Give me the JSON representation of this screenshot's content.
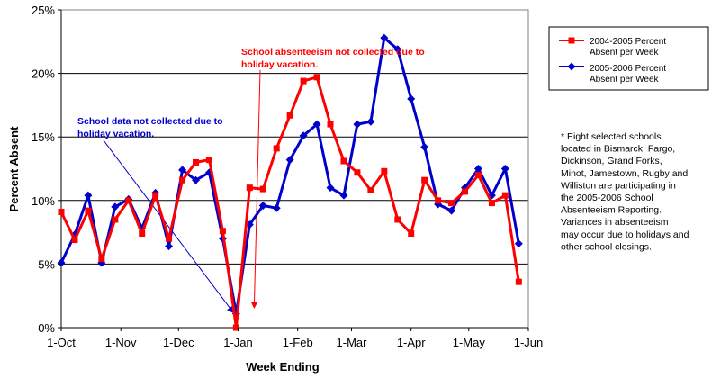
{
  "chart_data": {
    "type": "line",
    "xlabel": "Week Ending",
    "ylabel": "Percent Absent",
    "x_tick_labels": [
      "1-Oct",
      "1-Nov",
      "1-Dec",
      "1-Jan",
      "1-Feb",
      "1-Mar",
      "1-Apr",
      "1-May",
      "1-Jun"
    ],
    "y_tick_labels": [
      "0%",
      "5%",
      "10%",
      "15%",
      "20%",
      "25%"
    ],
    "ylim": [
      0,
      25
    ],
    "grid": "horizontal",
    "legend_position": "top-right",
    "series": [
      {
        "name": "2004-2005 Percent Absent per Week",
        "color": "#ff0000",
        "marker": "square",
        "points": [
          [
            "1-Oct",
            9.1
          ],
          [
            "8-Oct",
            6.9
          ],
          [
            "15-Oct",
            9.2
          ],
          [
            "22-Oct",
            5.4
          ],
          [
            "29-Oct",
            8.5
          ],
          [
            "5-Nov",
            10.0
          ],
          [
            "12-Nov",
            7.4
          ],
          [
            "19-Nov",
            10.4
          ],
          [
            "26-Nov",
            7.0
          ],
          [
            "3-Dec",
            11.6
          ],
          [
            "10-Dec",
            13.0
          ],
          [
            "17-Dec",
            13.2
          ],
          [
            "24-Dec",
            7.6
          ],
          [
            "31-Dec",
            0.0
          ],
          [
            "7-Jan",
            11.0
          ],
          [
            "14-Jan",
            10.9
          ],
          [
            "21-Jan",
            14.1
          ],
          [
            "28-Jan",
            16.7
          ],
          [
            "4-Feb",
            19.4
          ],
          [
            "11-Feb",
            19.7
          ],
          [
            "18-Feb",
            16.0
          ],
          [
            "25-Feb",
            13.1
          ],
          [
            "4-Mar",
            12.2
          ],
          [
            "11-Mar",
            10.8
          ],
          [
            "18-Mar",
            12.3
          ],
          [
            "25-Mar",
            8.5
          ],
          [
            "1-Apr",
            7.4
          ],
          [
            "8-Apr",
            11.6
          ],
          [
            "15-Apr",
            10.0
          ],
          [
            "22-Apr",
            9.8
          ],
          [
            "29-Apr",
            10.7
          ],
          [
            "6-May",
            12.0
          ],
          [
            "13-May",
            9.8
          ],
          [
            "20-May",
            10.4
          ],
          [
            "27-May",
            3.6
          ]
        ]
      },
      {
        "name": "2005-2006 Percent Absent per Week",
        "color": "#0000cc",
        "marker": "diamond",
        "points": [
          [
            "1-Oct",
            5.1
          ],
          [
            "8-Oct",
            7.3
          ],
          [
            "15-Oct",
            10.4
          ],
          [
            "22-Oct",
            5.1
          ],
          [
            "29-Oct",
            9.5
          ],
          [
            "5-Nov",
            10.1
          ],
          [
            "12-Nov",
            7.8
          ],
          [
            "19-Nov",
            10.6
          ],
          [
            "26-Nov",
            6.4
          ],
          [
            "3-Dec",
            12.4
          ],
          [
            "10-Dec",
            11.6
          ],
          [
            "17-Dec",
            12.2
          ],
          [
            "24-Dec",
            7.0
          ],
          [
            "31-Dec",
            1.1
          ],
          [
            "7-Jan",
            8.1
          ],
          [
            "14-Jan",
            9.6
          ],
          [
            "21-Jan",
            9.4
          ],
          [
            "28-Jan",
            13.2
          ],
          [
            "4-Feb",
            15.1
          ],
          [
            "11-Feb",
            16.0
          ],
          [
            "18-Feb",
            11.0
          ],
          [
            "25-Feb",
            10.4
          ],
          [
            "4-Mar",
            16.0
          ],
          [
            "11-Mar",
            16.2
          ],
          [
            "18-Mar",
            22.8
          ],
          [
            "25-Mar",
            21.9
          ],
          [
            "1-Apr",
            18.0
          ],
          [
            "8-Apr",
            14.2
          ],
          [
            "15-Apr",
            9.7
          ],
          [
            "22-Apr",
            9.2
          ],
          [
            "29-Apr",
            11.0
          ],
          [
            "6-May",
            12.5
          ],
          [
            "13-May",
            10.4
          ],
          [
            "20-May",
            12.5
          ],
          [
            "27-May",
            6.6
          ]
        ]
      }
    ],
    "annotations": [
      {
        "text_lines": [
          "School absenteeism not collected due to",
          "holiday vacation."
        ],
        "color": "#ff0000",
        "points_to": [
          "31-Dec",
          0.0
        ]
      },
      {
        "text_lines": [
          "School data not collected due to",
          "holiday vacation."
        ],
        "color": "#0000cc",
        "points_to": [
          "31-Dec",
          1.1
        ]
      }
    ],
    "note_lines": [
      "* Eight selected schools",
      "located in Bismarck, Fargo,",
      "Dickinson,  Grand Forks,",
      "Minot, Jamestown, Rugby and",
      "Williston are participating in",
      "the 2005-2006 School",
      "Absenteeism Reporting.",
      "Variances in absenteeism",
      "may occur due to holidays and",
      "other school closings."
    ]
  }
}
